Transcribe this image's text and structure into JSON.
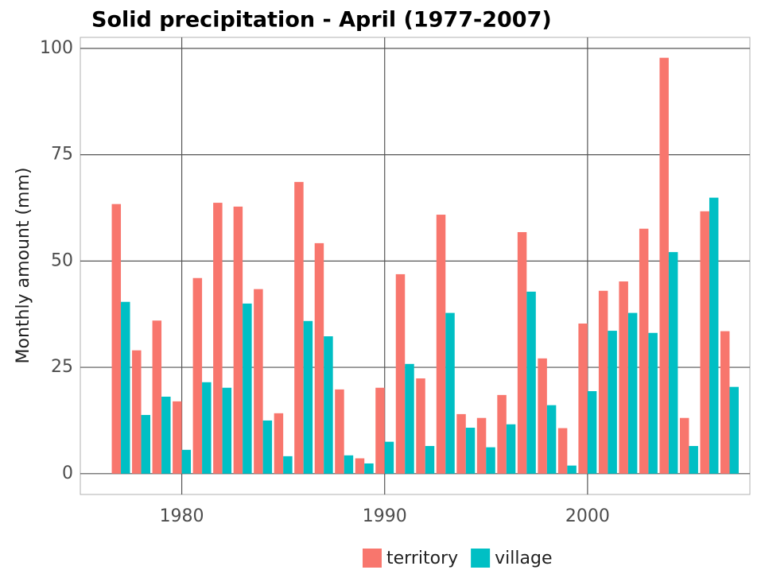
{
  "chart_data": {
    "type": "bar",
    "title": "Solid precipitation - April (1977-2007)",
    "y_label": "Monthly amount (mm)",
    "x": [
      1977,
      1978,
      1979,
      1980,
      1981,
      1982,
      1983,
      1984,
      1985,
      1986,
      1987,
      1988,
      1989,
      1990,
      1991,
      1992,
      1993,
      1994,
      1995,
      1996,
      1997,
      1998,
      1999,
      2000,
      2001,
      2002,
      2003,
      2004,
      2005,
      2006,
      2007
    ],
    "series": [
      {
        "name": "territory",
        "color": "#f8766d",
        "values": [
          63.4,
          29,
          36,
          17,
          46,
          63.7,
          62.8,
          43.4,
          14.2,
          68.6,
          54.2,
          19.8,
          3.6,
          20.2,
          46.9,
          22.4,
          60.9,
          14,
          13.1,
          18.5,
          56.8,
          27.1,
          10.7,
          35.3,
          43,
          45.2,
          57.6,
          97.8,
          13.1,
          61.7,
          33.5
        ]
      },
      {
        "name": "village",
        "color": "#00bfc4",
        "values": [
          40.4,
          13.8,
          18.1,
          5.6,
          21.5,
          20.2,
          40,
          12.5,
          4.1,
          35.9,
          32.3,
          4.3,
          2.4,
          7.5,
          25.8,
          6.5,
          37.8,
          10.8,
          6.2,
          11.6,
          42.8,
          16.1,
          1.9,
          19.4,
          33.6,
          37.8,
          33.1,
          52.1,
          6.5,
          64.9,
          20.4
        ]
      }
    ],
    "xlim": [
      1975,
      2008
    ],
    "xticks": [
      1980,
      1990,
      2000
    ],
    "ylim": [
      -4.9,
      102.6
    ],
    "yticks": [
      0,
      25,
      50,
      75,
      100
    ],
    "grid": true,
    "legend": "bottom"
  }
}
